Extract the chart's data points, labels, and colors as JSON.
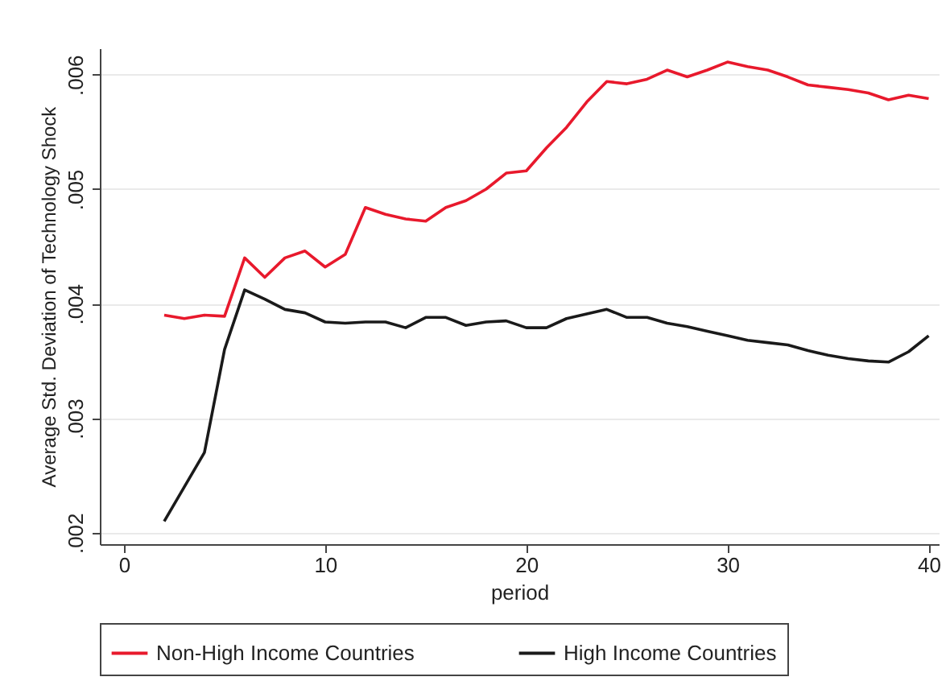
{
  "chart_data": {
    "type": "line",
    "xlabel": "period",
    "ylabel": "Average Std. Deviation of Technology Shock",
    "x": [
      2,
      3,
      4,
      5,
      6,
      7,
      8,
      9,
      10,
      11,
      12,
      13,
      14,
      15,
      16,
      17,
      18,
      19,
      20,
      21,
      22,
      23,
      24,
      25,
      26,
      27,
      28,
      29,
      30,
      31,
      32,
      33,
      34,
      35,
      36,
      37,
      38,
      39,
      40
    ],
    "series": [
      {
        "name": "Non-High Income Countries",
        "color": "#e8192c",
        "values": [
          0.0039,
          0.00387,
          0.0039,
          0.00389,
          0.0044,
          0.00423,
          0.0044,
          0.00446,
          0.00432,
          0.00443,
          0.00484,
          0.00478,
          0.00474,
          0.00472,
          0.00484,
          0.0049,
          0.005,
          0.00514,
          0.00516,
          0.00536,
          0.00554,
          0.00576,
          0.00594,
          0.00592,
          0.00596,
          0.00604,
          0.00598,
          0.00604,
          0.00611,
          0.00607,
          0.00604,
          0.00598,
          0.00591,
          0.00589,
          0.00587,
          0.00584,
          0.00578,
          0.00582,
          0.00579
        ]
      },
      {
        "name": "High Income Countries",
        "color": "#1a1a1a",
        "values": [
          0.0021,
          0.0024,
          0.0027,
          0.0036,
          0.00412,
          0.00404,
          0.00395,
          0.00392,
          0.00384,
          0.00383,
          0.00384,
          0.00384,
          0.00379,
          0.00388,
          0.00388,
          0.00381,
          0.00384,
          0.00385,
          0.00379,
          0.00379,
          0.00387,
          0.00391,
          0.00395,
          0.00388,
          0.00388,
          0.00383,
          0.0038,
          0.00376,
          0.00372,
          0.00368,
          0.00366,
          0.00364,
          0.00359,
          0.00355,
          0.00352,
          0.0035,
          0.00349,
          0.00358,
          0.00372
        ]
      }
    ],
    "xlim": [
      -1.2,
      40.5
    ],
    "xticks": [
      0,
      10,
      20,
      30,
      40
    ],
    "ylim": [
      0.0019,
      0.00623
    ],
    "yticks": [
      {
        "value": 0.002,
        "label": ".002"
      },
      {
        "value": 0.003,
        "label": ".003"
      },
      {
        "value": 0.004,
        "label": ".004"
      },
      {
        "value": 0.005,
        "label": ".005"
      },
      {
        "value": 0.006,
        "label": ".006"
      }
    ],
    "grid": "y",
    "legend": "bottom",
    "marker": "none",
    "line_style": "solid"
  }
}
